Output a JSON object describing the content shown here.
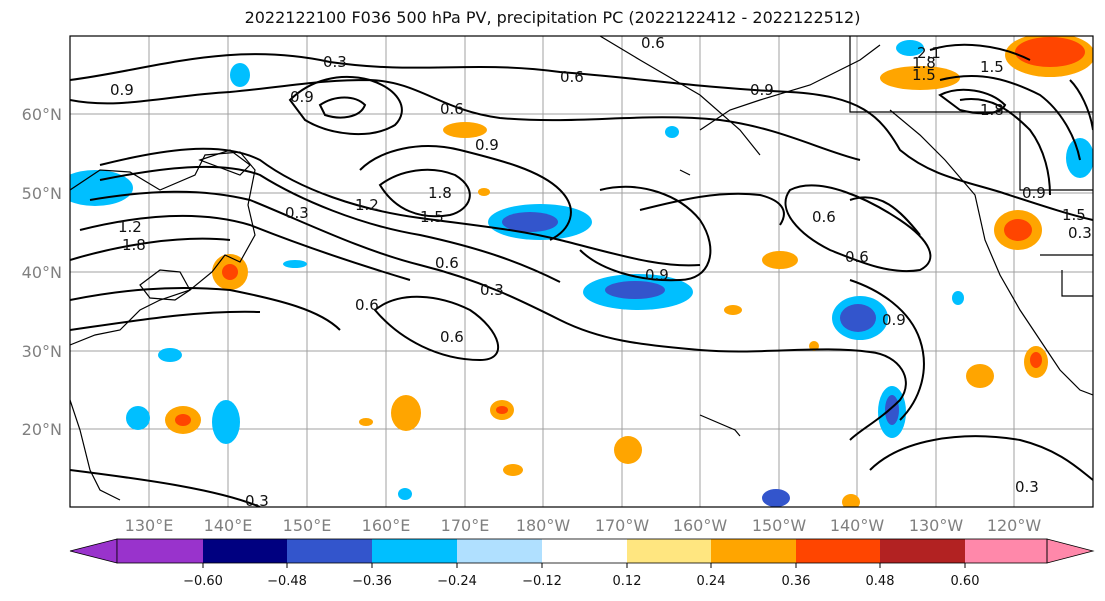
{
  "title": "2022122100 F036 500 hPa PV, precipitation PC (2022122412 - 2022122512)",
  "lat_labels": [
    "60°N",
    "50°N",
    "40°N",
    "30°N",
    "20°N"
  ],
  "lon_labels": [
    "130°E",
    "140°E",
    "150°E",
    "160°E",
    "170°E",
    "180°W",
    "170°W",
    "160°W",
    "150°W",
    "140°W",
    "130°W",
    "120°W"
  ],
  "colorbar": {
    "ticks": [
      "−0.60",
      "−0.48",
      "−0.36",
      "−0.24",
      "−0.12",
      "0.12",
      "0.24",
      "0.36",
      "0.48",
      "0.60"
    ],
    "colors": [
      "#9933cc",
      "#000080",
      "#3355cc",
      "#00bfff",
      "#b0e0ff",
      "#ffffff",
      "#ffe680",
      "#ffa500",
      "#ff4500",
      "#b22222",
      "#ff88aa"
    ]
  },
  "contour_labels": [
    "0.6",
    "0.3",
    "0.6",
    "0.9",
    "0.9",
    "0.6",
    "0.9",
    "1.5",
    "1.8",
    "1.2",
    "0.3",
    "1.8",
    "1.2",
    "0.9",
    "1.5",
    "0.6",
    "0.3",
    "0.6",
    "0.6",
    "0.9",
    "0.6",
    "0.6",
    "0.9",
    "0.3",
    "0.3",
    "2.1",
    "1.8",
    "1.5",
    "1.8",
    "0.9",
    "1.5",
    "0.3"
  ]
}
